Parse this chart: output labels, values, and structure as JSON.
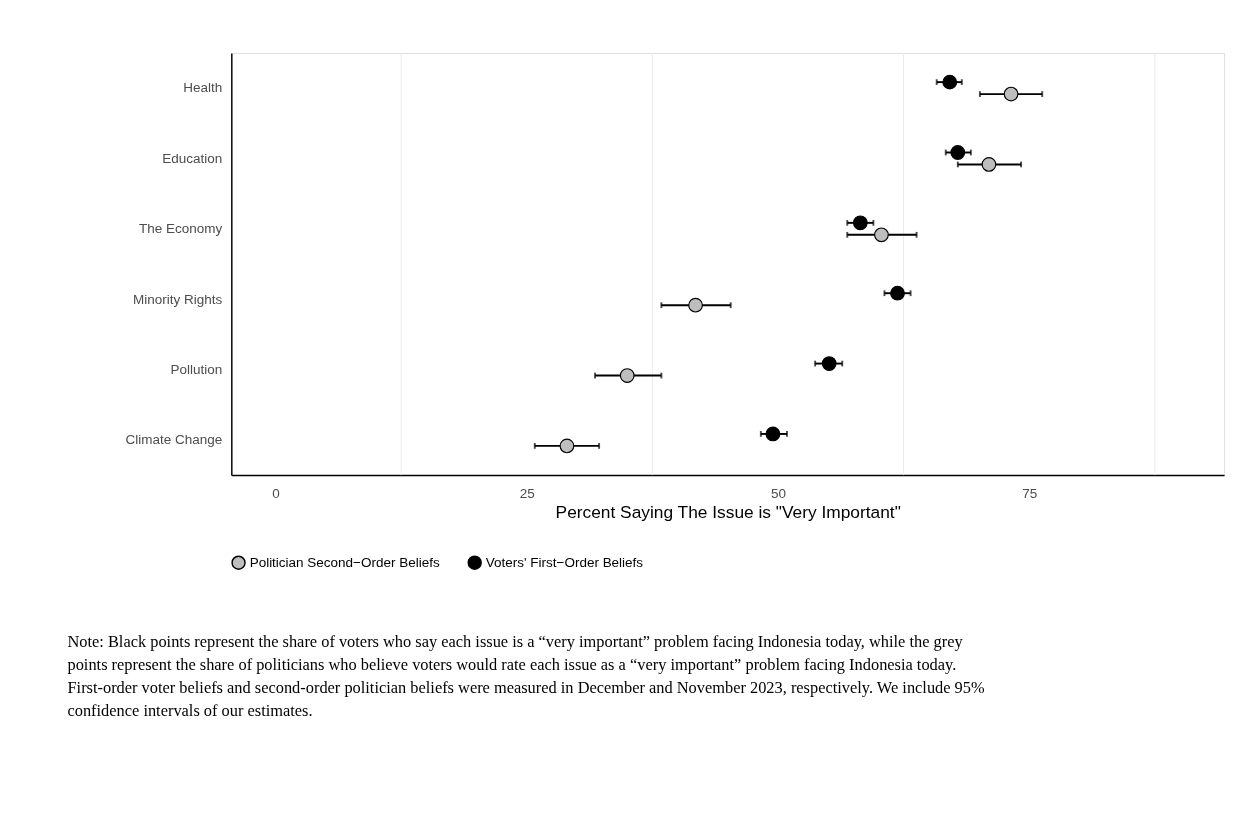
{
  "chart_data": {
    "type": "scatter",
    "orientation": "horizontal",
    "categories": [
      "Health",
      "Education",
      "The Economy",
      "Minority Rights",
      "Pollution",
      "Climate Change"
    ],
    "xlabel": "Percent Saying The Issue is \"Very Important\"",
    "xlim": [
      -4.4,
      94.4
    ],
    "xticks": [
      0,
      25,
      50,
      75,
      {
        "value": 12.5,
        "label": null
      },
      {
        "value": 37.5,
        "label": null
      },
      {
        "value": 62.5,
        "label": null
      },
      {
        "value": 87.5,
        "label": null
      }
    ],
    "grid": "x",
    "legend": "bottom",
    "marker": "circle",
    "series": [
      {
        "name": "Politician Second−Order Beliefs",
        "color": "#bebebe",
        "values": [
          73.2,
          71.0,
          60.3,
          41.8,
          35.0,
          29.0
        ],
        "errors": [
          [
            70.1,
            76.3
          ],
          [
            67.9,
            74.2
          ],
          [
            56.9,
            63.8
          ],
          [
            38.4,
            45.3
          ],
          [
            31.8,
            38.4
          ],
          [
            25.8,
            32.2
          ]
        ]
      },
      {
        "name": "Voters' First−Order Beliefs",
        "color": "#000000",
        "values": [
          67.1,
          67.9,
          58.2,
          61.9,
          55.1,
          49.5
        ],
        "errors": [
          [
            65.8,
            68.3
          ],
          [
            66.7,
            69.2
          ],
          [
            56.9,
            59.5
          ],
          [
            60.6,
            63.2
          ],
          [
            53.7,
            56.4
          ],
          [
            48.3,
            50.9
          ]
        ]
      }
    ],
    "annotations": [
      "Note: Black points represent the share of voters who say each issue is a “very important” problem facing Indonesia today, while the grey points represent the share of politicians who believe voters would rate each issue as a “very important” problem facing Indonesia today. First-order voter beliefs and second-order politician beliefs were measured in December and November 2023, respectively. We include 95% confidence intervals of our estimates."
    ]
  }
}
